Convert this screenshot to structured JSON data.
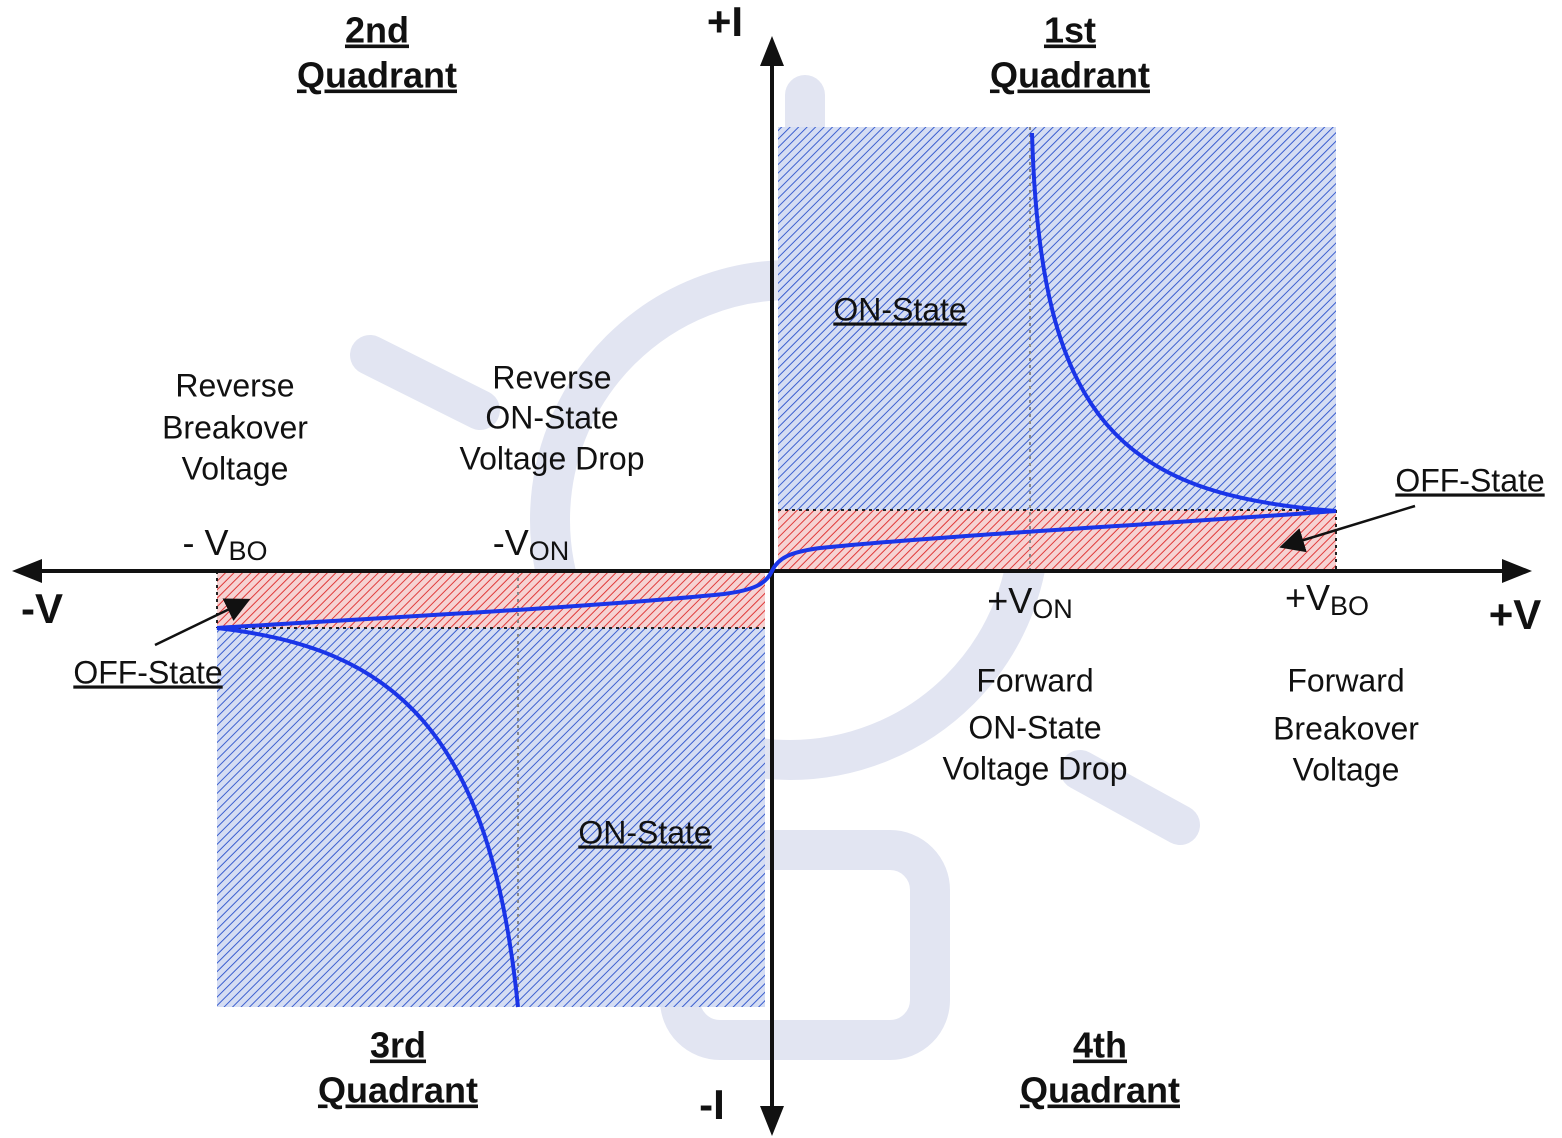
{
  "quadrants": [
    {
      "number": "2nd",
      "label": "Quadrant"
    },
    {
      "number": "1st",
      "label": "Quadrant"
    },
    {
      "number": "3rd",
      "label": "Quadrant"
    },
    {
      "number": "4th",
      "label": "Quadrant"
    }
  ],
  "axes": {
    "positive_current": "+I",
    "negative_current": "-I",
    "negative_voltage": "-V",
    "positive_voltage": "+V"
  },
  "regions": {
    "forward_on_state": "ON-State",
    "reverse_on_state": "ON-State",
    "forward_off_state": "OFF-State",
    "reverse_off_state": "OFF-State"
  },
  "markers": [
    {
      "prefix": "- V",
      "subscript": "BO"
    },
    {
      "prefix": "-V",
      "subscript": "ON"
    },
    {
      "prefix": "+V",
      "subscript": "ON"
    },
    {
      "prefix": "+V",
      "subscript": "BO"
    }
  ],
  "annotations": [
    {
      "lines": [
        "Reverse",
        "Breakover",
        "Voltage"
      ]
    },
    {
      "lines": [
        "Reverse",
        "ON-State",
        "Voltage Drop"
      ]
    },
    {
      "lines": [
        "Forward",
        "ON-State",
        "Voltage Drop"
      ]
    },
    {
      "lines": [
        "Forward",
        "Breakover",
        "Voltage"
      ]
    }
  ]
}
